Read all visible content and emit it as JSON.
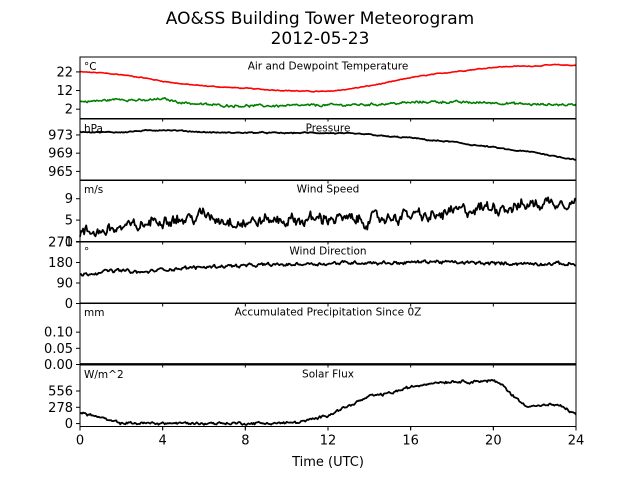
{
  "figure": {
    "title_line1": "AO&SS Building Tower Meteorogram",
    "title_line2": "2012-05-23",
    "xlabel": "Time (UTC)",
    "x_ticks": [
      0,
      4,
      8,
      12,
      16,
      20,
      24
    ],
    "x_tick_labels": [
      "0",
      "4",
      "8",
      "12",
      "16",
      "20",
      "24"
    ],
    "xlim": [
      0,
      24
    ]
  },
  "chart_data": [
    {
      "type": "line",
      "title": "Air and Dewpoint Temperature",
      "unit": "°C",
      "ylim": [
        -3,
        30
      ],
      "y_ticks": [
        2,
        12,
        22
      ],
      "y_tick_labels": [
        "2",
        "12",
        "22"
      ],
      "series": [
        {
          "color": "#ff0000",
          "noise": 0.3,
          "x": [
            0,
            1,
            2,
            3,
            4,
            5,
            6,
            7,
            8,
            9,
            10,
            11,
            12,
            13,
            14,
            15,
            16,
            17,
            18,
            19,
            20,
            21,
            22,
            23,
            24
          ],
          "values": [
            22,
            21.5,
            20.5,
            19,
            17,
            15.5,
            14.5,
            13.8,
            13.2,
            12.5,
            12,
            11.6,
            11.5,
            12.8,
            14.5,
            16.5,
            19,
            20.5,
            22,
            23.2,
            24.5,
            25,
            25.2,
            25.8,
            25.5
          ]
        },
        {
          "color": "#008000",
          "noise": 0.8,
          "x": [
            0,
            1,
            2,
            3,
            4,
            5,
            6,
            7,
            8,
            9,
            10,
            11,
            12,
            13,
            14,
            15,
            16,
            17,
            18,
            19,
            20,
            21,
            22,
            23,
            24
          ],
          "values": [
            6,
            6.5,
            7.5,
            6.5,
            7.5,
            5.5,
            4.5,
            4,
            3.8,
            3.8,
            3.8,
            4,
            4.2,
            4.3,
            4.5,
            5,
            5.5,
            6,
            5.8,
            5.5,
            5.5,
            5,
            4.5,
            4.5,
            4.3
          ]
        }
      ]
    },
    {
      "type": "line",
      "title": "Pressure",
      "unit": "hPa",
      "ylim": [
        963,
        976.5
      ],
      "y_ticks": [
        965,
        969,
        973
      ],
      "y_tick_labels": [
        "965",
        "969",
        "973"
      ],
      "series": [
        {
          "color": "#000000",
          "noise": 0.15,
          "x": [
            0,
            1,
            2,
            3,
            4,
            5,
            6,
            7,
            8,
            9,
            10,
            11,
            12,
            13,
            14,
            15,
            16,
            17,
            18,
            19,
            20,
            21,
            22,
            23,
            24
          ],
          "values": [
            973.7,
            973.6,
            973.6,
            973.9,
            974.1,
            973.9,
            973.6,
            973.5,
            973.5,
            973.5,
            973.4,
            973.5,
            973.4,
            973.3,
            973.1,
            972.6,
            972.4,
            971.8,
            971.5,
            970.8,
            970.3,
            969.6,
            969.2,
            968.3,
            967.6
          ]
        }
      ]
    },
    {
      "type": "line",
      "title": "Wind Speed",
      "unit": "m/s",
      "ylim": [
        1,
        12.5
      ],
      "y_ticks": [
        1,
        5,
        9
      ],
      "y_tick_labels": [
        "1",
        "5",
        "9"
      ],
      "series": [
        {
          "color": "#000000",
          "noise": 1.4,
          "x": [
            0,
            1,
            2,
            3,
            4,
            5,
            6,
            7,
            8,
            9,
            10,
            11,
            12,
            13,
            14,
            15,
            16,
            17,
            18,
            19,
            20,
            21,
            22,
            23,
            24
          ],
          "values": [
            2.5,
            3,
            3.5,
            4,
            5.5,
            5,
            6,
            5,
            4.5,
            5,
            5,
            5,
            5.5,
            5,
            5,
            5.5,
            6,
            5.5,
            6.5,
            7,
            7.5,
            7.5,
            8,
            8.5,
            8.5
          ]
        }
      ]
    },
    {
      "type": "line",
      "title": "Wind Direction",
      "unit": "°",
      "ylim": [
        0,
        270
      ],
      "y_ticks": [
        0,
        90,
        180,
        270
      ],
      "y_tick_labels": [
        "0",
        "90",
        "180",
        "270"
      ],
      "series": [
        {
          "color": "#000000",
          "noise": 9,
          "x": [
            0,
            1,
            2,
            3,
            4,
            5,
            6,
            7,
            8,
            9,
            10,
            11,
            12,
            13,
            14,
            15,
            16,
            17,
            18,
            19,
            20,
            21,
            22,
            23,
            24
          ],
          "values": [
            125,
            140,
            145,
            135,
            150,
            155,
            160,
            165,
            165,
            170,
            170,
            175,
            175,
            180,
            180,
            178,
            180,
            185,
            180,
            178,
            176,
            176,
            175,
            175,
            172
          ]
        }
      ]
    },
    {
      "type": "line",
      "title": "Accumulated Precipitation Since 0Z",
      "unit": "mm",
      "ylim": [
        0,
        0.19
      ],
      "y_ticks": [
        0.0,
        0.05,
        0.1
      ],
      "y_tick_labels": [
        "0.00",
        "0.05",
        "0.10"
      ],
      "series": [
        {
          "color": "#000000",
          "noise": 0,
          "x": [
            0,
            24
          ],
          "values": [
            0,
            0
          ]
        }
      ]
    },
    {
      "type": "line",
      "title": "Solar Flux",
      "unit": "W/m^2",
      "ylim": [
        -50,
        1000
      ],
      "y_ticks": [
        0,
        278,
        556
      ],
      "y_tick_labels": [
        "0",
        "278",
        "556"
      ],
      "series": [
        {
          "color": "#000000",
          "noise": 28,
          "x": [
            0,
            0.5,
            1,
            1.5,
            2,
            3,
            4,
            5,
            6,
            7,
            8,
            9,
            10,
            10.5,
            11,
            11.5,
            12,
            12.5,
            13,
            13.5,
            14,
            15,
            16,
            17,
            18,
            19,
            19.5,
            20,
            20.5,
            21,
            21.5,
            22,
            23,
            23.5,
            24
          ],
          "values": [
            180,
            150,
            100,
            40,
            10,
            5,
            5,
            5,
            5,
            5,
            5,
            5,
            10,
            20,
            50,
            90,
            150,
            230,
            300,
            380,
            460,
            520,
            620,
            700,
            720,
            720,
            730,
            730,
            640,
            460,
            320,
            300,
            320,
            260,
            150
          ]
        }
      ]
    }
  ]
}
